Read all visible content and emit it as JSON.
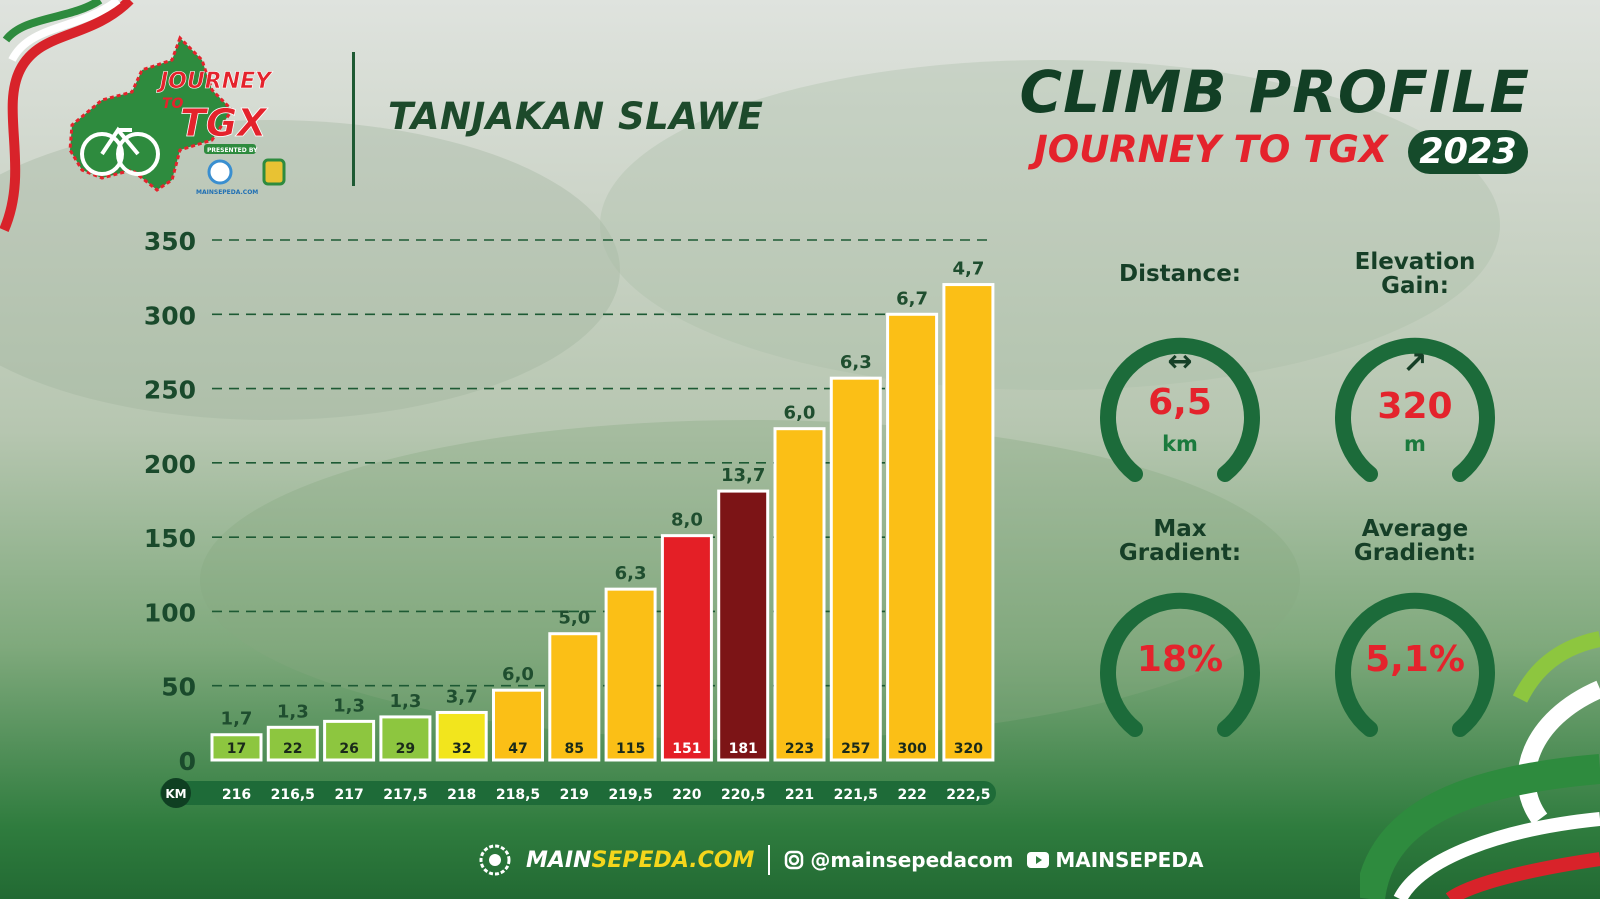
{
  "header": {
    "route_name": "TANJAKAN SLAWE",
    "title": "CLIMB PROFILE",
    "subtitle": "JOURNEY TO TGX",
    "year": "2023",
    "logo": {
      "line1": "JOURNEY",
      "line2": "TO",
      "line3": "TGX",
      "presented_by": "PRESENTED BY",
      "sponsor": "MAINSEPEDA.COM"
    }
  },
  "colors": {
    "dark_green": "#154b2b",
    "accent_red": "#e4232c",
    "accent_yellow": "#f5d61c"
  },
  "chart_data": {
    "type": "bar",
    "x_axis_label": "KM",
    "categories": [
      "216",
      "216,5",
      "217",
      "217,5",
      "218",
      "218,5",
      "219",
      "219,5",
      "220",
      "220,5",
      "221",
      "221,5",
      "222",
      "222,5"
    ],
    "elevation": [
      17,
      22,
      26,
      29,
      32,
      47,
      85,
      115,
      151,
      181,
      223,
      257,
      300,
      320
    ],
    "elevation_labels": [
      "17",
      "22",
      "26",
      "29",
      "32",
      "47",
      "85",
      "115",
      "151",
      "181",
      "223",
      "257",
      "300",
      "320"
    ],
    "gradient_labels": [
      "1,7",
      "1,3",
      "1,3",
      "1,3",
      "3,7",
      "6,0",
      "5,0",
      "6,3",
      "8,0",
      "13,7",
      "6,0",
      "6,3",
      "6,7",
      "4,7"
    ],
    "bar_colors": [
      "#8dc63f",
      "#8dc63f",
      "#8dc63f",
      "#8dc63f",
      "#f2e51d",
      "#fbbf16",
      "#fbbf16",
      "#fbbf16",
      "#e41f26",
      "#7c1416",
      "#fbbf16",
      "#fbbf16",
      "#fbbf16",
      "#fbbf16"
    ],
    "y_ticks": [
      "0",
      "50",
      "100",
      "150",
      "200",
      "250",
      "300",
      "350"
    ],
    "ylim": [
      0,
      350
    ],
    "grid": "dashed"
  },
  "stats": [
    {
      "label_line1": "Distance:",
      "label_line2": "",
      "icon": "arrows-horizontal-icon",
      "icon_glyph": "↔",
      "value": "6,5",
      "unit": "km"
    },
    {
      "label_line1": "Elevation",
      "label_line2": "Gain:",
      "icon": "arrow-up-right-icon",
      "icon_glyph": "↗",
      "value": "320",
      "unit": "m"
    },
    {
      "label_line1": "Max",
      "label_line2": "Gradient:",
      "icon": "",
      "icon_glyph": "",
      "value": "18%",
      "unit": ""
    },
    {
      "label_line1": "Average",
      "label_line2": "Gradient:",
      "icon": "",
      "icon_glyph": "",
      "value": "5,1%",
      "unit": ""
    }
  ],
  "footer": {
    "brand_main": "MAIN",
    "brand_accent": "SEPEDA.COM",
    "instagram": "@mainsepedacom",
    "youtube": "MAINSEPEDA"
  }
}
